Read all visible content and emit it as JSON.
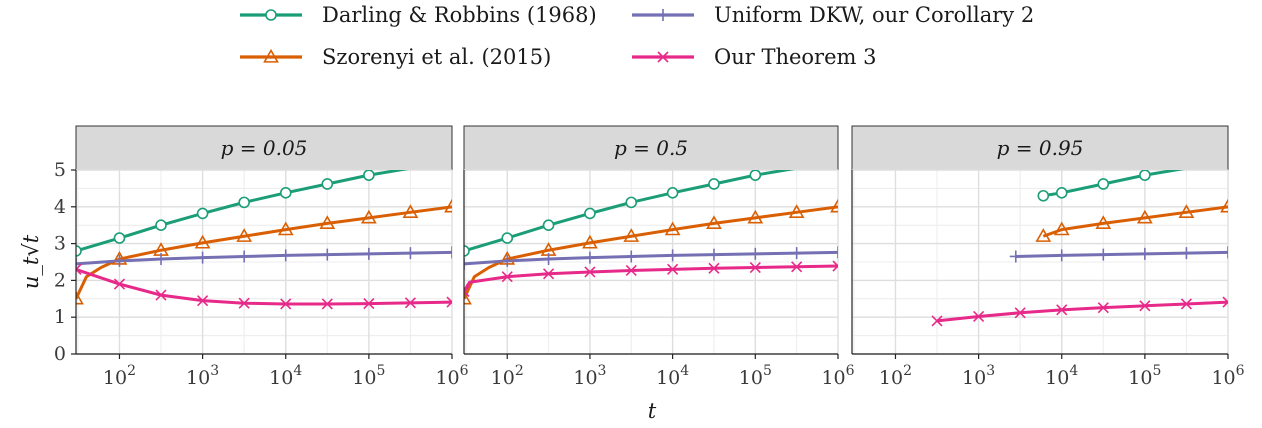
{
  "chart_data": {
    "type": "line",
    "x_scale": "log",
    "xlabel": "t",
    "ylabel": "u_t√t",
    "xlim": [
      30,
      1000000
    ],
    "ylim": [
      0,
      5
    ],
    "yticks": [
      0,
      1,
      2,
      3,
      4,
      5
    ],
    "xticks": [
      {
        "value": 100,
        "base": "10",
        "exp": "2"
      },
      {
        "value": 1000,
        "base": "10",
        "exp": "3"
      },
      {
        "value": 10000,
        "base": "10",
        "exp": "4"
      },
      {
        "value": 100000,
        "base": "10",
        "exp": "5"
      },
      {
        "value": 1000000,
        "base": "10",
        "exp": "6"
      }
    ],
    "grid": true,
    "legend_position": "top",
    "legend": [
      {
        "name": "Darling & Robbins (1968)",
        "color": "#1b9e77",
        "marker": "circle"
      },
      {
        "name": "Uniform DKW, our Corollary 2",
        "color": "#7570b3",
        "marker": "plus"
      },
      {
        "name": "Szorenyi et al. (2015)",
        "color": "#d95f02",
        "marker": "triangle"
      },
      {
        "name": "Our Theorem 3",
        "color": "#e7298a",
        "marker": "cross"
      }
    ],
    "panels": [
      {
        "label": "p = 0.05",
        "series": [
          {
            "name": "Darling & Robbins (1968)",
            "x": [
              30,
              100,
              316,
              1000,
              3162,
              10000,
              31623,
              100000,
              316228,
              1000000
            ],
            "y": [
              2.8,
              3.15,
              3.5,
              3.82,
              4.12,
              4.38,
              4.62,
              4.86,
              5.05,
              5.2
            ]
          },
          {
            "name": "Szorenyi et al. (2015)",
            "x": [
              30,
              40,
              60,
              100,
              316,
              1000,
              3162,
              10000,
              31623,
              100000,
              316228,
              1000000
            ],
            "y": [
              1.5,
              2.1,
              2.35,
              2.58,
              2.82,
              3.02,
              3.2,
              3.38,
              3.55,
              3.7,
              3.85,
              4.0
            ]
          },
          {
            "name": "Uniform DKW, our Corollary 2",
            "x": [
              30,
              100,
              316,
              1000,
              3162,
              10000,
              31623,
              100000,
              316228,
              1000000
            ],
            "y": [
              2.45,
              2.53,
              2.58,
              2.62,
              2.65,
              2.68,
              2.7,
              2.72,
              2.74,
              2.76
            ]
          },
          {
            "name": "Our Theorem 3",
            "x": [
              30,
              100,
              316,
              1000,
              3162,
              10000,
              31623,
              100000,
              316228,
              1000000
            ],
            "y": [
              2.3,
              1.9,
              1.6,
              1.45,
              1.38,
              1.36,
              1.36,
              1.37,
              1.39,
              1.41
            ]
          }
        ]
      },
      {
        "label": "p = 0.5",
        "series": [
          {
            "name": "Darling & Robbins (1968)",
            "x": [
              30,
              100,
              316,
              1000,
              3162,
              10000,
              31623,
              100000,
              316228,
              1000000
            ],
            "y": [
              2.8,
              3.15,
              3.5,
              3.82,
              4.12,
              4.38,
              4.62,
              4.86,
              5.05,
              5.2
            ]
          },
          {
            "name": "Szorenyi et al. (2015)",
            "x": [
              30,
              40,
              60,
              100,
              316,
              1000,
              3162,
              10000,
              31623,
              100000,
              316228,
              1000000
            ],
            "y": [
              1.5,
              2.1,
              2.35,
              2.58,
              2.82,
              3.02,
              3.2,
              3.38,
              3.55,
              3.7,
              3.85,
              4.0
            ]
          },
          {
            "name": "Uniform DKW, our Corollary 2",
            "x": [
              30,
              100,
              316,
              1000,
              3162,
              10000,
              31623,
              100000,
              316228,
              1000000
            ],
            "y": [
              2.45,
              2.53,
              2.58,
              2.62,
              2.65,
              2.68,
              2.7,
              2.72,
              2.74,
              2.76
            ]
          },
          {
            "name": "Our Theorem 3",
            "x": [
              30,
              35,
              50,
              100,
              316,
              1000,
              3162,
              10000,
              31623,
              100000,
              316228,
              1000000
            ],
            "y": [
              1.7,
              1.95,
              2.0,
              2.1,
              2.18,
              2.23,
              2.27,
              2.3,
              2.33,
              2.35,
              2.37,
              2.39
            ]
          }
        ]
      },
      {
        "label": "p = 0.95",
        "series": [
          {
            "name": "Darling & Robbins (1968)",
            "x": [
              6000,
              10000,
              31623,
              100000,
              316228,
              1000000
            ],
            "y": [
              4.3,
              4.38,
              4.62,
              4.86,
              5.05,
              5.2
            ]
          },
          {
            "name": "Szorenyi et al. (2015)",
            "x": [
              6000,
              10000,
              31623,
              100000,
              316228,
              1000000
            ],
            "y": [
              3.2,
              3.38,
              3.55,
              3.7,
              3.85,
              4.0
            ]
          },
          {
            "name": "Uniform DKW, our Corollary 2",
            "x": [
              2800,
              10000,
              31623,
              100000,
              316228,
              1000000
            ],
            "y": [
              2.65,
              2.68,
              2.7,
              2.72,
              2.74,
              2.76
            ]
          },
          {
            "name": "Our Theorem 3",
            "x": [
              316,
              1000,
              3162,
              10000,
              31623,
              100000,
              316228,
              1000000
            ],
            "y": [
              0.9,
              1.02,
              1.12,
              1.2,
              1.26,
              1.31,
              1.36,
              1.41
            ]
          }
        ]
      }
    ]
  }
}
